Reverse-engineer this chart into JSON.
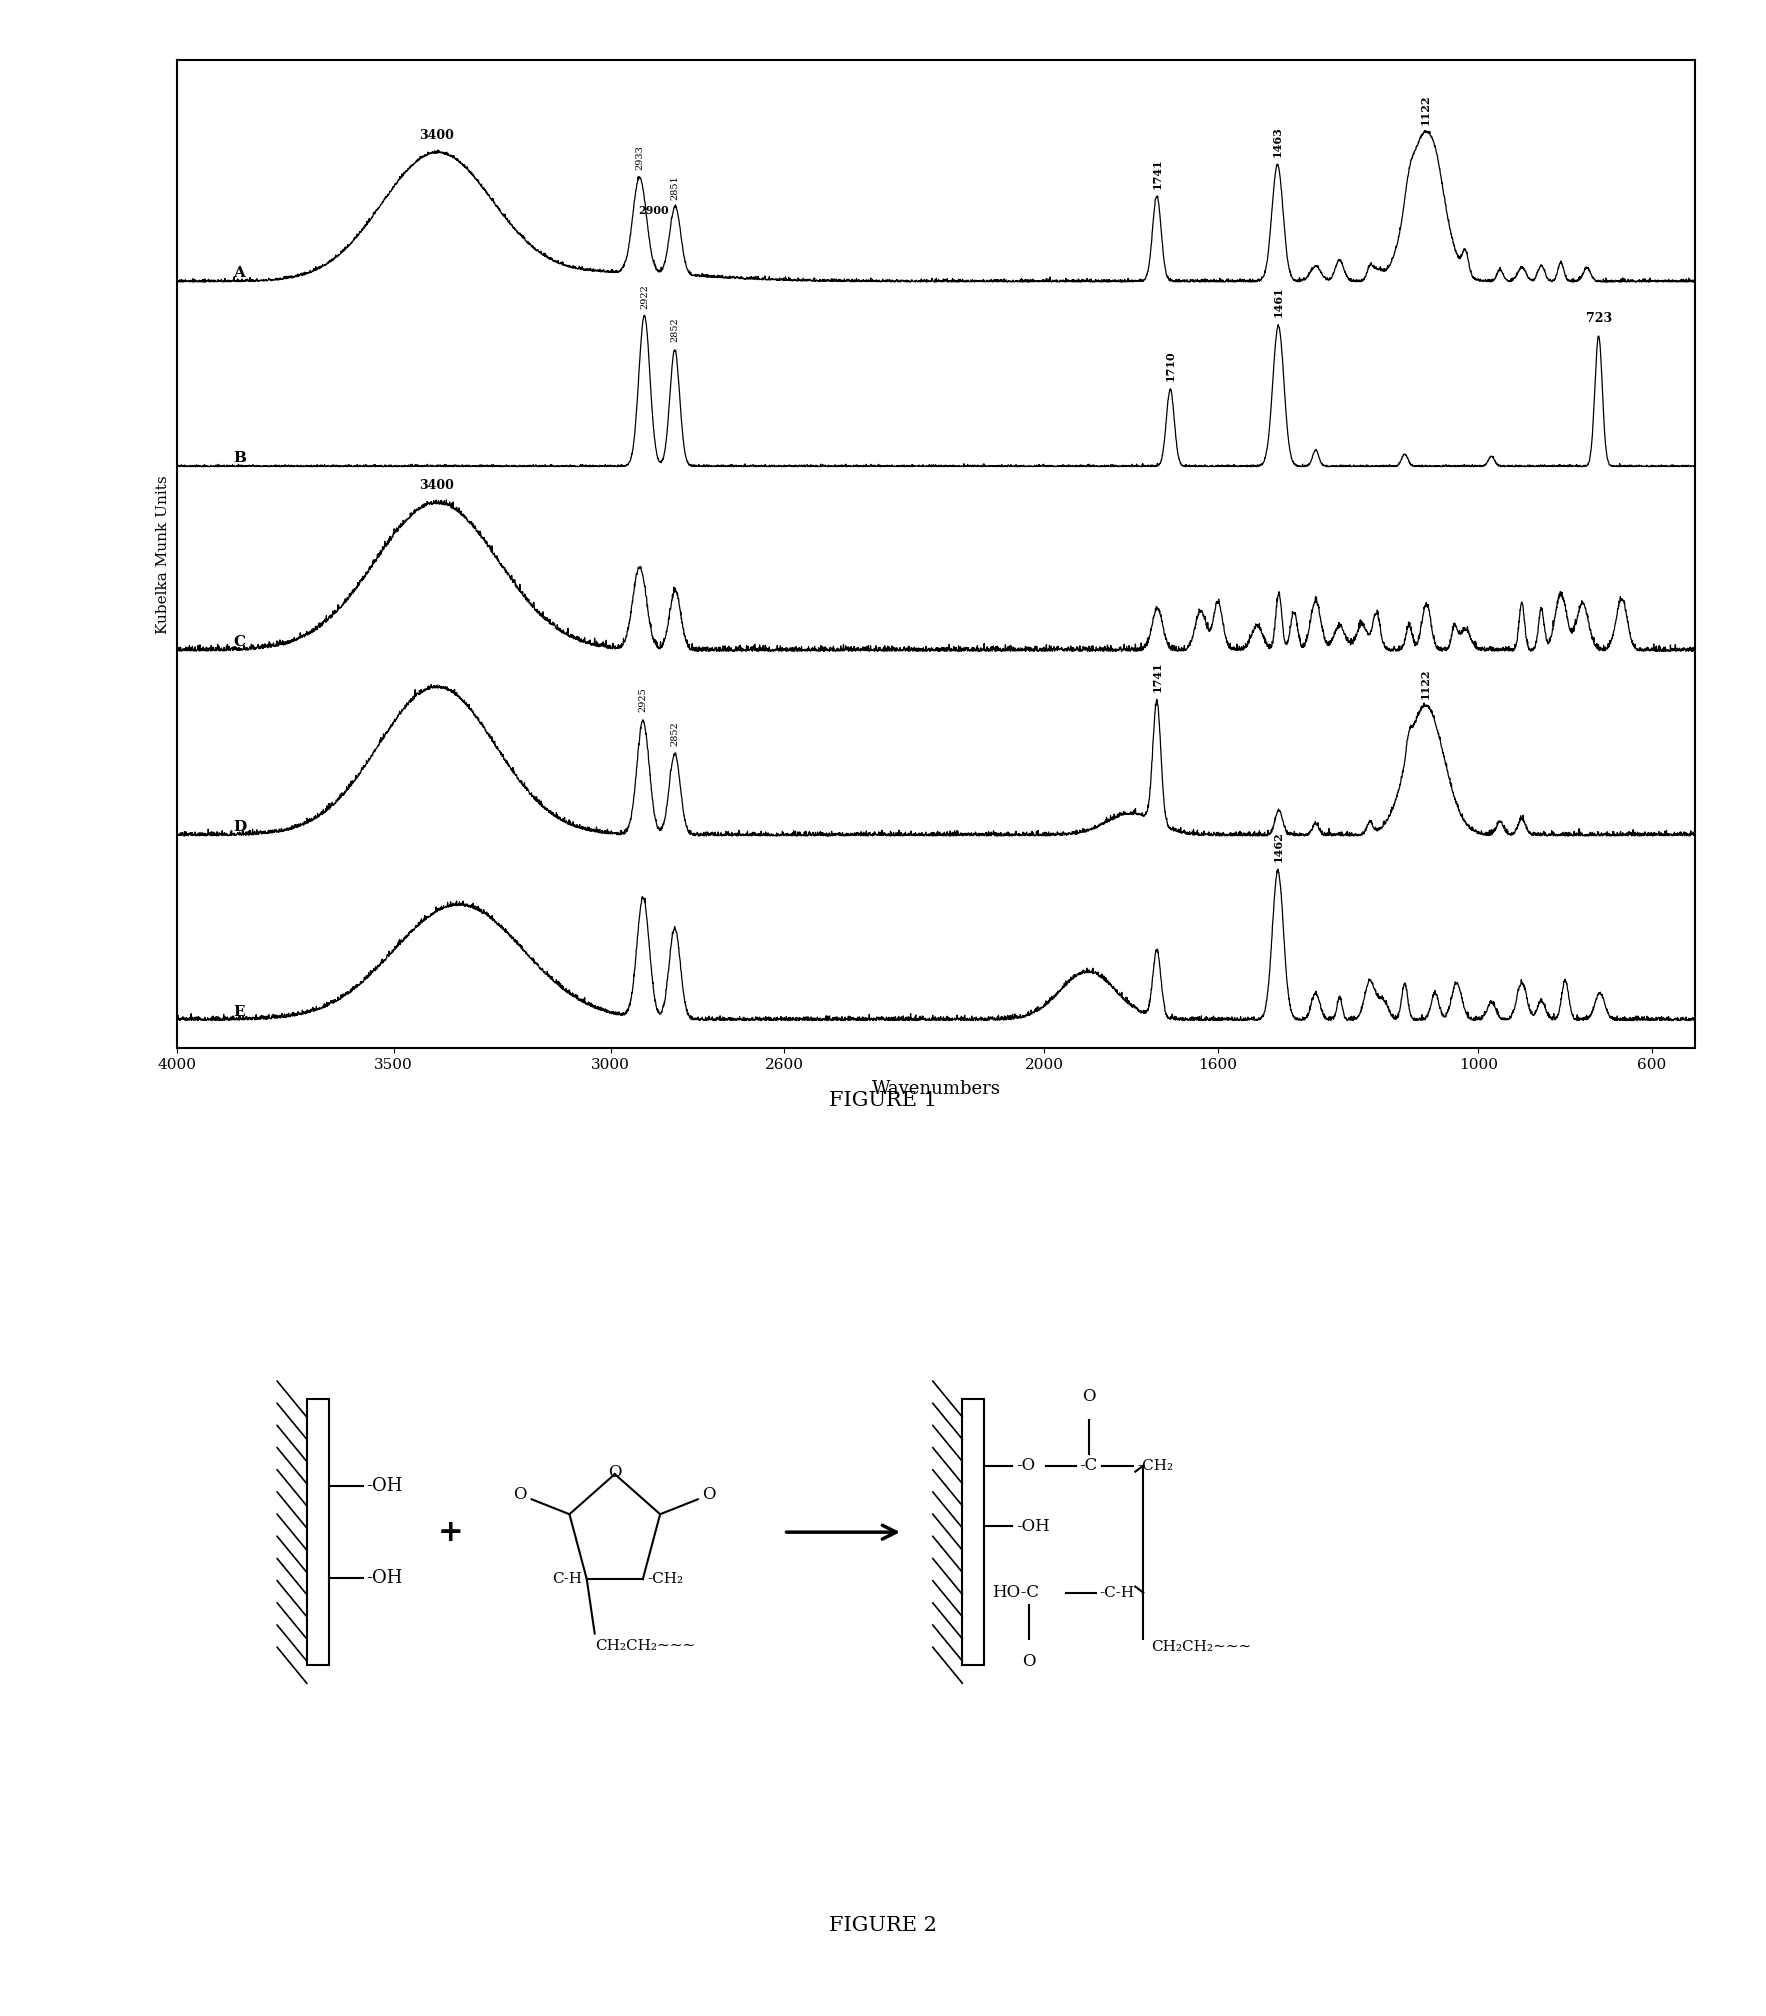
{
  "fig1_title": "FIGURE 1",
  "fig2_title": "FIGURE 2",
  "ylabel": "Kubelka Munk Units",
  "xlabel": "Wavenumbers",
  "xmin": 4000,
  "xmax": 500,
  "xticks": [
    4000,
    3500,
    3000,
    2600,
    2000,
    1600,
    1000,
    600
  ],
  "spectra_labels": [
    "A",
    "B",
    "C",
    "D",
    "E"
  ],
  "spectra_offsets": [
    4.0,
    3.0,
    2.0,
    1.0,
    0.0
  ],
  "background_color": "#ffffff",
  "line_color": "#000000"
}
